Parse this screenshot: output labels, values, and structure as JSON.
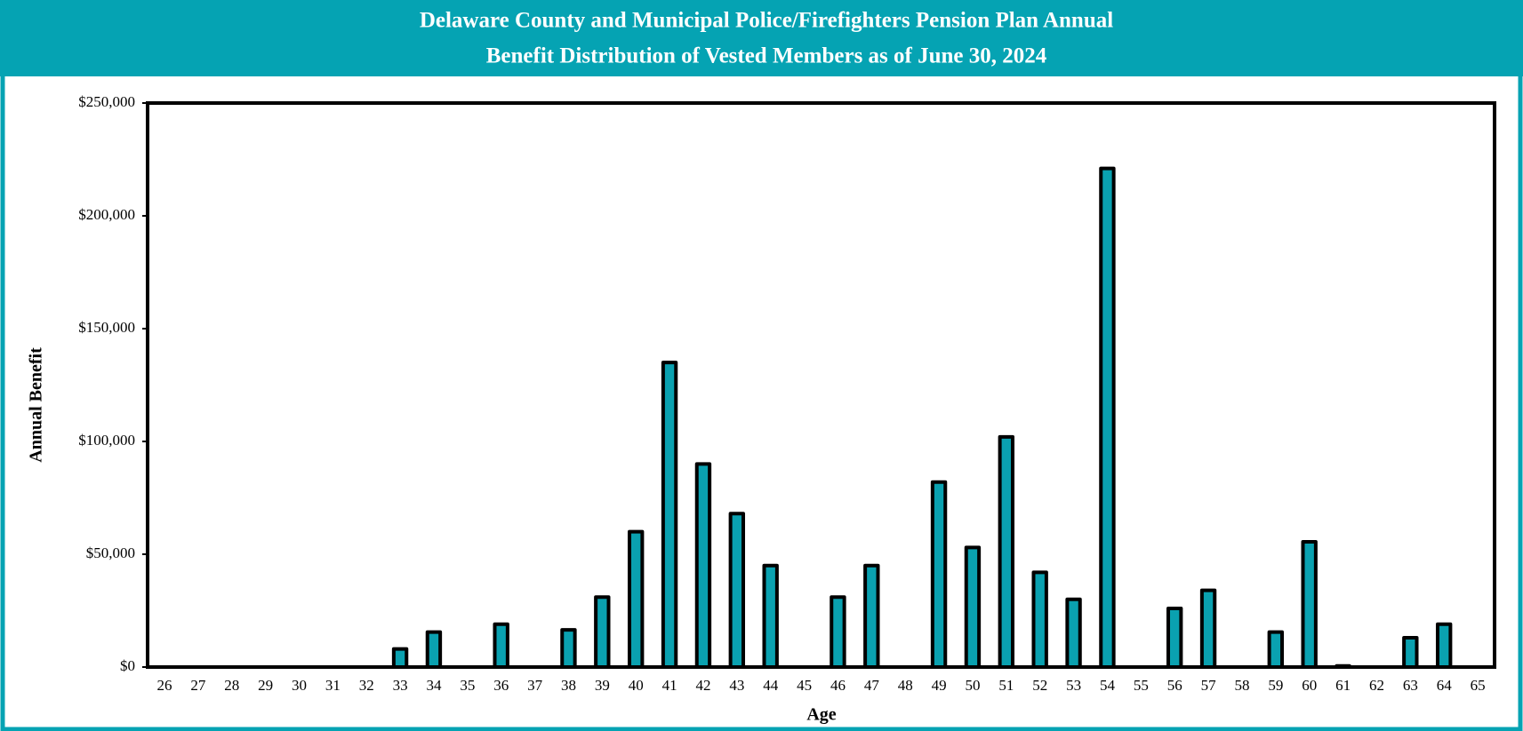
{
  "chart_data": {
    "type": "bar",
    "title": [
      "Delaware County and Municipal Police/Firefighters Pension Plan Annual",
      "Benefit Distribution of Vested Members as of June 30, 2024"
    ],
    "x_label": "Age",
    "y_label": "Annual Benefit",
    "categories": [
      "26",
      "27",
      "28",
      "29",
      "30",
      "31",
      "32",
      "33",
      "34",
      "35",
      "36",
      "37",
      "38",
      "39",
      "40",
      "41",
      "42",
      "43",
      "44",
      "45",
      "46",
      "47",
      "48",
      "49",
      "50",
      "51",
      "52",
      "53",
      "54",
      "55",
      "56",
      "57",
      "58",
      "59",
      "60",
      "61",
      "62",
      "63",
      "64",
      "65"
    ],
    "values": [
      0,
      0,
      0,
      0,
      0,
      0,
      0,
      8000,
      15500,
      0,
      19000,
      0,
      16500,
      31000,
      60000,
      135000,
      90000,
      68000,
      45000,
      0,
      31000,
      45000,
      0,
      82000,
      53000,
      102000,
      42000,
      30000,
      221000,
      0,
      26000,
      34000,
      0,
      15500,
      55500,
      500,
      0,
      13000,
      19000,
      0
    ],
    "color": "#0aa1b0",
    "ylim": [
      0,
      250000
    ],
    "yticks": [
      {
        "value": 0,
        "label": "$0"
      },
      {
        "value": 50000,
        "label": "$50,000"
      },
      {
        "value": 100000,
        "label": "$100,000"
      },
      {
        "value": 150000,
        "label": "$150,000"
      },
      {
        "value": 200000,
        "label": "$200,000"
      },
      {
        "value": 250000,
        "label": "$250,000"
      }
    ],
    "grid": false
  }
}
